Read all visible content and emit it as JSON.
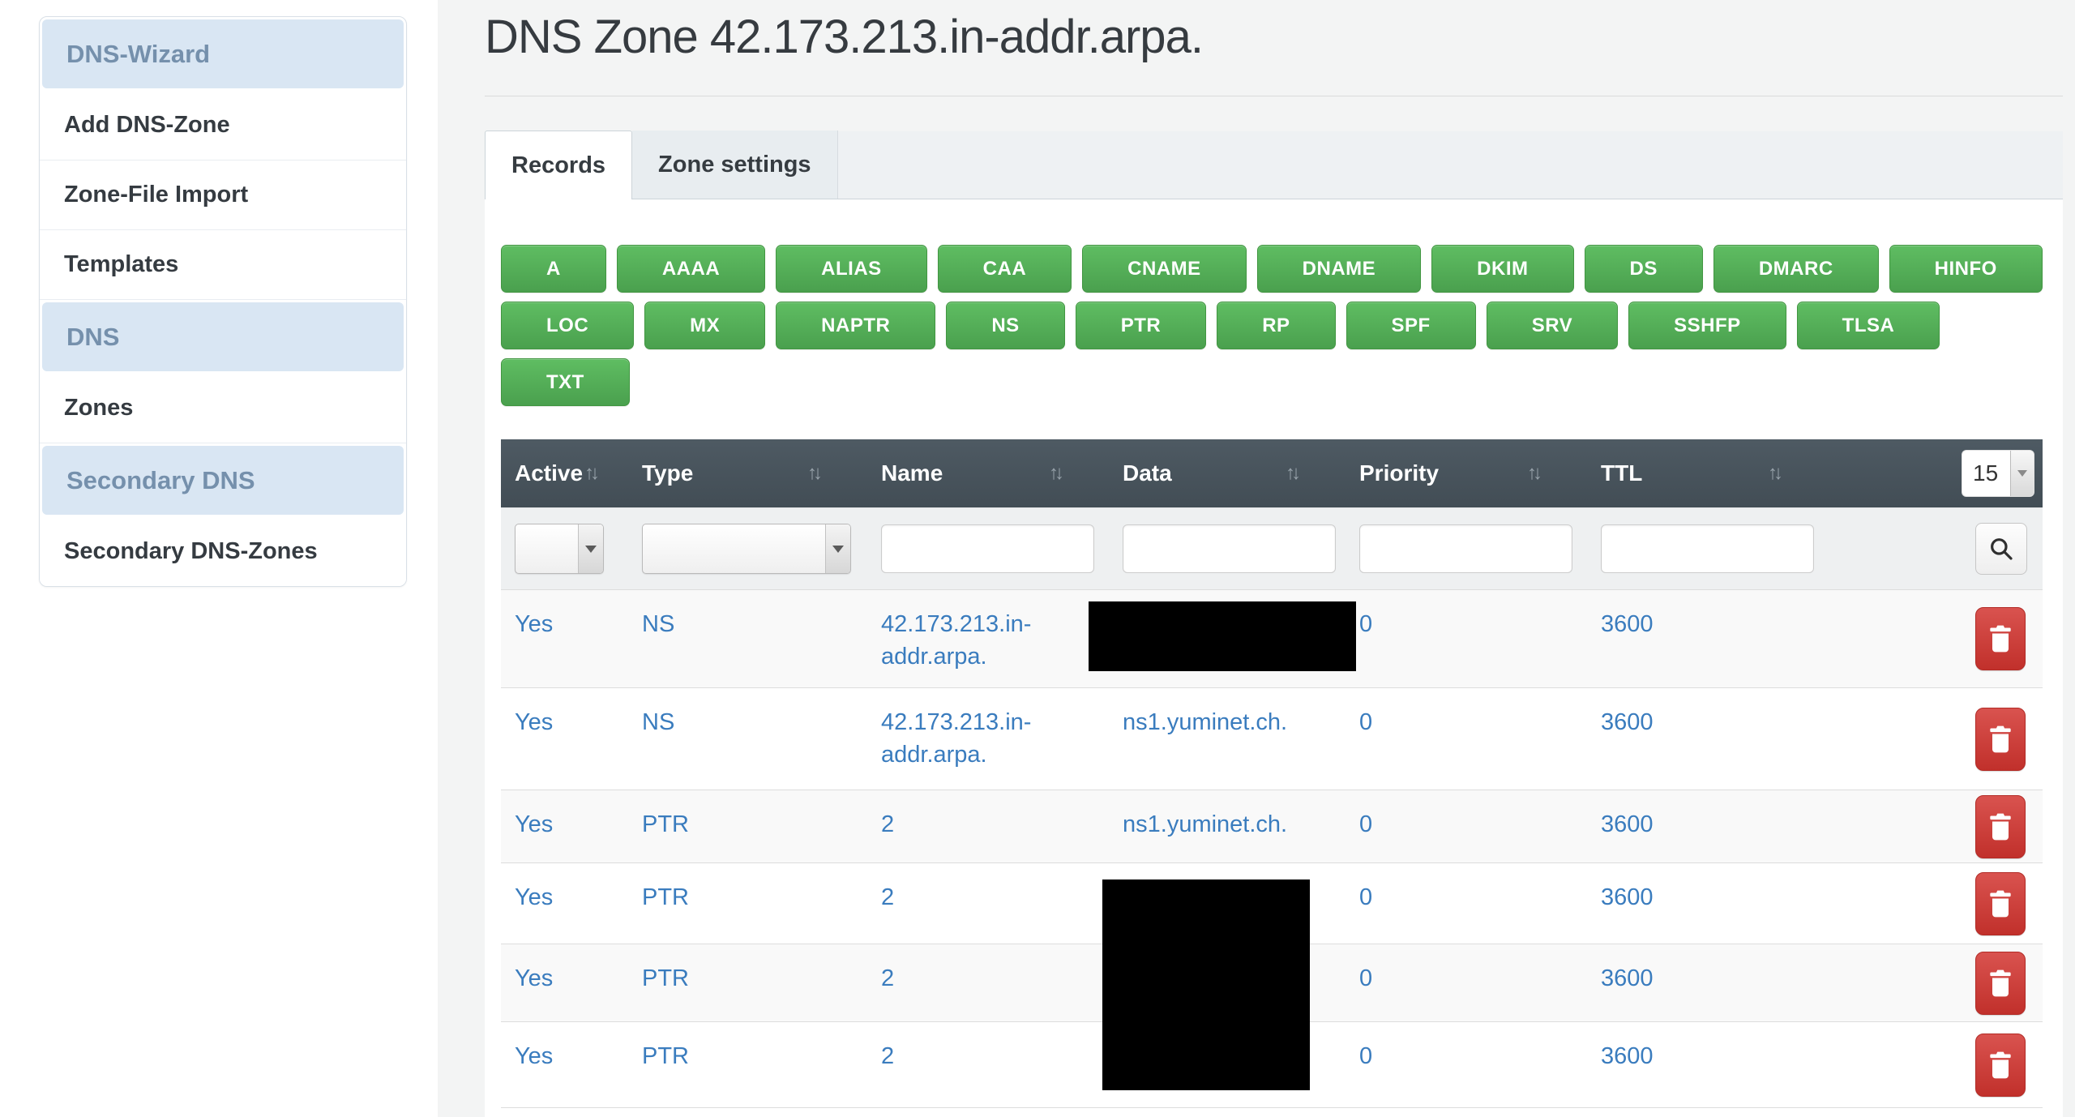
{
  "page": {
    "title": "DNS Zone 42.173.213.in-addr.arpa."
  },
  "sidebar": {
    "items": [
      {
        "type": "header",
        "label": "DNS-Wizard"
      },
      {
        "type": "link",
        "label": "Add DNS-Zone"
      },
      {
        "type": "link",
        "label": "Zone-File Import"
      },
      {
        "type": "link",
        "label": "Templates"
      },
      {
        "type": "header",
        "label": "DNS"
      },
      {
        "type": "link",
        "label": "Zones"
      },
      {
        "type": "header",
        "label": "Secondary DNS"
      },
      {
        "type": "link",
        "label": "Secondary DNS-Zones"
      }
    ]
  },
  "tabs": [
    {
      "label": "Records",
      "active": true
    },
    {
      "label": "Zone settings",
      "active": false
    }
  ],
  "record_type_buttons": [
    "A",
    "AAAA",
    "ALIAS",
    "CAA",
    "CNAME",
    "DNAME",
    "DKIM",
    "DS",
    "DMARC",
    "HINFO",
    "LOC",
    "MX",
    "NAPTR",
    "NS",
    "PTR",
    "RP",
    "SPF",
    "SRV",
    "SSHFP",
    "TLSA",
    "TXT"
  ],
  "icons": {
    "sort": "↑↓",
    "dropdown": "▼",
    "search": "magnifier-svg",
    "delete": "trash-can-svg"
  },
  "table": {
    "page_size": "15",
    "columns": [
      "Active",
      "Type",
      "Name",
      "Data",
      "Priority",
      "TTL"
    ],
    "filter": {
      "active_value": "",
      "type_value": "",
      "name_value": "",
      "data_value": "",
      "priority_value": "",
      "ttl_value": ""
    },
    "rows": [
      {
        "active": "Yes",
        "type": "NS",
        "name": "42.173.213.in-addr.arpa.",
        "data": "",
        "data_redacted": true,
        "priority": "0",
        "ttl": "3600"
      },
      {
        "active": "Yes",
        "type": "NS",
        "name": "42.173.213.in-addr.arpa.",
        "data": "ns1.yuminet.ch.",
        "data_redacted": false,
        "priority": "0",
        "ttl": "3600"
      },
      {
        "active": "Yes",
        "type": "PTR",
        "name": "2",
        "data": "ns1.yuminet.ch.",
        "data_redacted": false,
        "priority": "0",
        "ttl": "3600"
      },
      {
        "active": "Yes",
        "type": "PTR",
        "name": "2",
        "data": "",
        "data_redacted": true,
        "priority": "0",
        "ttl": "3600"
      },
      {
        "active": "Yes",
        "type": "PTR",
        "name": "2",
        "data": "",
        "data_redacted": true,
        "priority": "0",
        "ttl": "3600"
      },
      {
        "active": "Yes",
        "type": "PTR",
        "name": "2",
        "data": "",
        "data_redacted": true,
        "priority": "0",
        "ttl": "3600"
      }
    ]
  },
  "colors": {
    "button_green": "#5cb85c",
    "delete_red": "#c9302c",
    "link_blue": "#337ab7",
    "table_header_bg": "#47525b",
    "sidebar_header_bg": "#d9e6f3",
    "page_bg": "#f3f4f4"
  }
}
